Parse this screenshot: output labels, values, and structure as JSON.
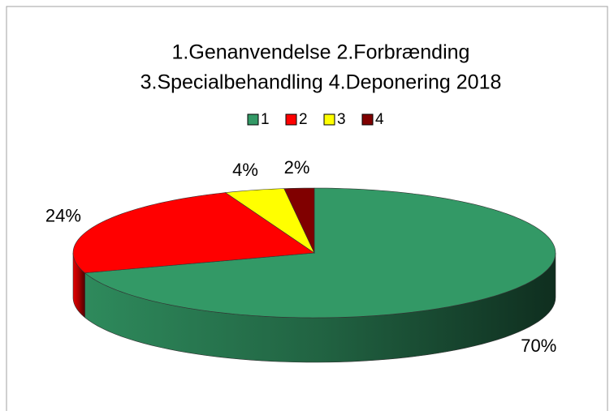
{
  "chart_data": {
    "type": "pie",
    "title": [
      "1.Genanvendelse 2.Forbrænding",
      "3.Specialbehandling 4.Deponering 2018"
    ],
    "categories": [
      "1",
      "2",
      "3",
      "4"
    ],
    "values": [
      70,
      24,
      4,
      2
    ],
    "value_labels": [
      "70%",
      "24%",
      "4%",
      "2%"
    ],
    "colors": [
      "#339966",
      "#ff0000",
      "#ffff00",
      "#800000"
    ],
    "legend": "top"
  }
}
